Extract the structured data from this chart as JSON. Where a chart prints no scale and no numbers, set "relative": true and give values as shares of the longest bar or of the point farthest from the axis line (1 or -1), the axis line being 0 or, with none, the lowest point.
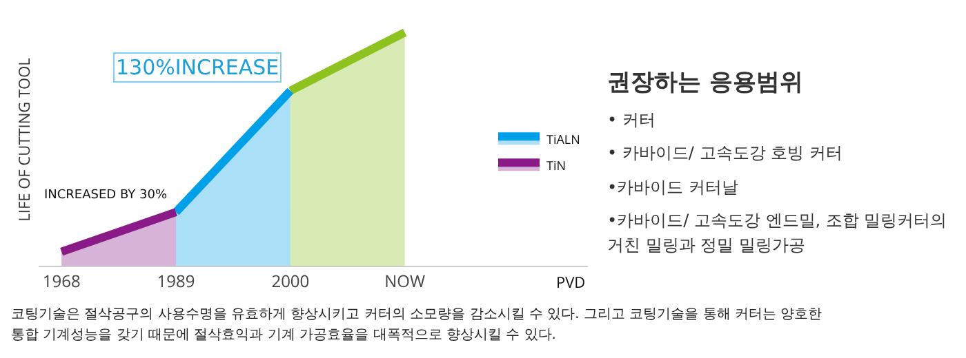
{
  "chart_data": {
    "type": "area",
    "title": "권장하는 응용범위",
    "ylabel": "LIFE OF CUTTING TOOL",
    "relative": true,
    "grid": false,
    "legend": "right",
    "categories": [
      "1968",
      "1989",
      "2000",
      "NOW"
    ],
    "series": [
      {
        "color": "#8dc21f",
        "values": [
          null,
          null,
          0.75,
          1
        ]
      },
      {
        "name": "TiALN",
        "color": "#00a0e9",
        "values": [
          null,
          0.23,
          0.75,
          null
        ]
      },
      {
        "name": "TiN",
        "color": "#8b1a89",
        "values": [
          0.06,
          0.23,
          null,
          null
        ]
      }
    ],
    "annotations": [
      {
        "text": "INCREASED BY 30%",
        "x": "1989",
        "y": 0.23
      },
      {
        "text": "130%INCREASE",
        "x": "2000",
        "y": 0.75
      },
      "PVD",
      "• 커터",
      "• 카바이드/ 고속도강 호빙 커터",
      "•카바이드 커터날",
      "•카바이드/ 고속도강 엔드밀, 조합 밀링커터의 거친 밀링과 정밀 밀링가공",
      "코팅기술은 절삭공구의 사용수명을 유효하게 향상시키고 커터의 소모량을 감소시킬 수 있다. 그리고 코팅기술을 통해 커터는 양호한 통합 기계성능을 갖기 때문에 절삭효익과 기계 가공효율을 대폭적으로 향상시킬 수 있다."
    ]
  }
}
